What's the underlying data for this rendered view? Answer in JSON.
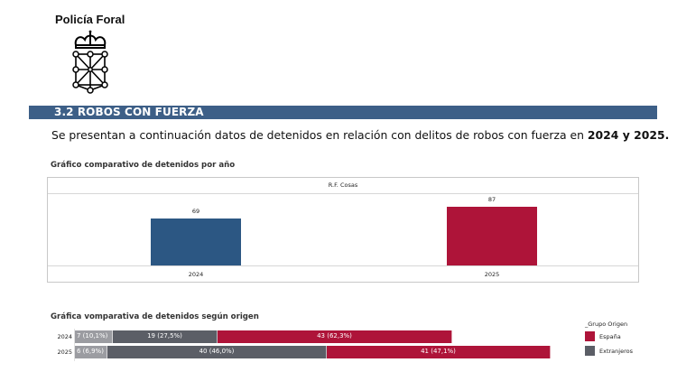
{
  "header": {
    "org_name": "Policía Foral",
    "logo_icon": "navarra-coat-of-arms-icon"
  },
  "section": {
    "title": "3.2 ROBOS CON FUERZA",
    "intro_prefix": "Se presentan a continuación datos de detenidos en relación con delitos de robos con fuerza en ",
    "intro_bold": "2024 y 2025."
  },
  "colors": {
    "section_bar": "#3d5f87",
    "bar_2024": "#2c5783",
    "bar_2025": "#ae1439",
    "espana": "#ae1439",
    "extranjeros": "#5b5e66",
    "unlabeled_group": "#9b9ca1"
  },
  "chart_data": [
    {
      "type": "bar",
      "title": "Gráfico comparativo de detenidos por año",
      "panel_header": "R.F. Cosas",
      "categories": [
        "2024",
        "2025"
      ],
      "values": [
        69,
        87
      ],
      "bar_colors": [
        "#2c5783",
        "#ae1439"
      ],
      "data_labels": [
        "69",
        "87"
      ],
      "xlabel": "",
      "ylabel": "",
      "ylim": [
        0,
        106
      ],
      "grid": false
    },
    {
      "type": "bar",
      "orientation": "horizontal-stacked",
      "title": "Gráfica vomparativa de detenidos según origen",
      "categories": [
        "2024",
        "2025"
      ],
      "series": [
        {
          "name": "",
          "color": "#9b9ca1",
          "values": [
            7,
            6
          ],
          "labels": [
            "7 (10,1%)",
            "6 (6,9%)"
          ]
        },
        {
          "name": "Extranjeros",
          "color": "#5b5e66",
          "values": [
            19,
            40
          ],
          "labels": [
            "19 (27,5%)",
            "40 (46,0%)"
          ]
        },
        {
          "name": "España",
          "color": "#ae1439",
          "values": [
            43,
            41
          ],
          "labels": [
            "43 (62,3%)",
            "41 (47,1%)"
          ]
        }
      ],
      "xlim": [
        0,
        87
      ],
      "legend": {
        "title": "_Grupo Origen",
        "position": "right",
        "entries": [
          {
            "label": "España",
            "color": "#ae1439"
          },
          {
            "label": "Extranjeros",
            "color": "#5b5e66"
          }
        ]
      }
    }
  ]
}
